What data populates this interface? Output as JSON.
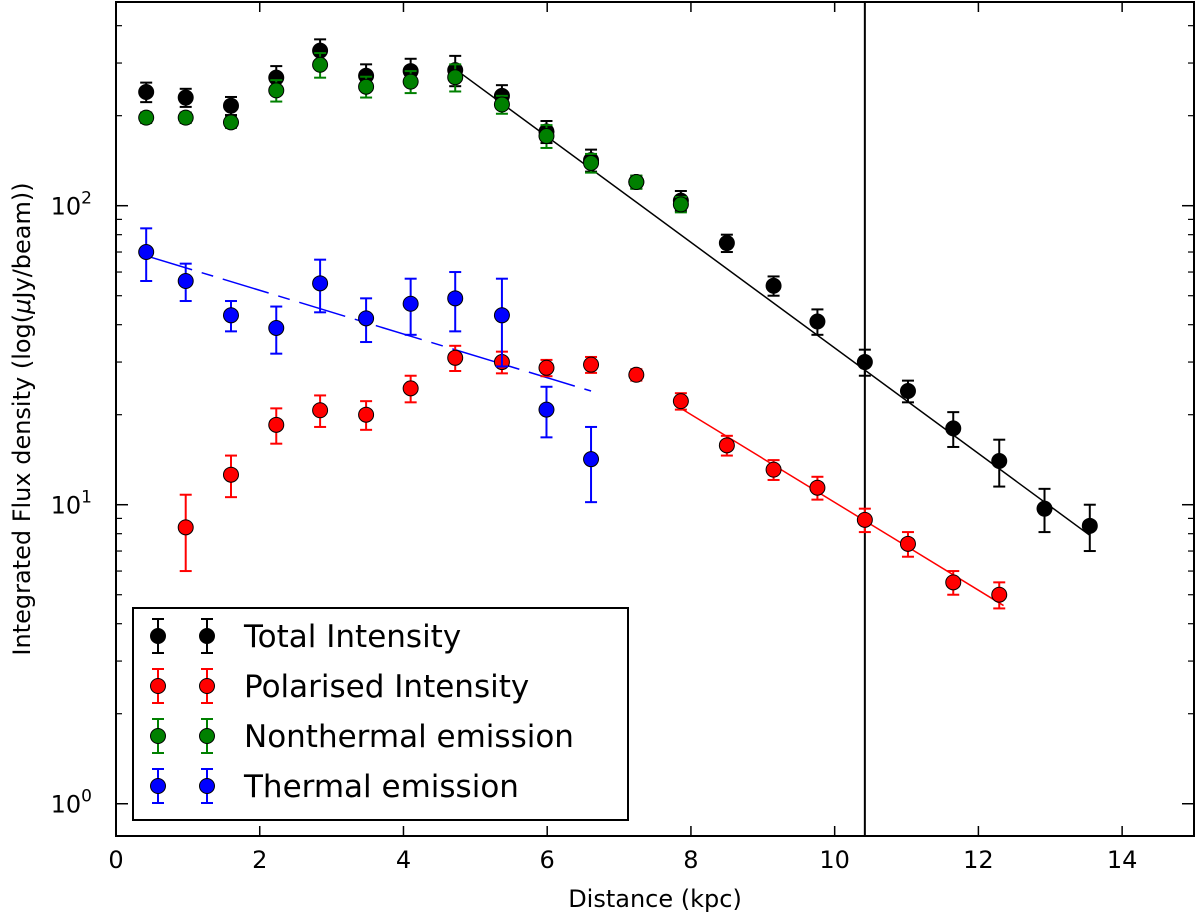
{
  "chart_data": {
    "type": "scatter",
    "xlabel": "Distance (kpc)",
    "ylabel_prefix": "Integrated Flux density (log(",
    "ylabel_mu": "μ",
    "ylabel_suffix": "Jy/beam))",
    "xlim": [
      0,
      15
    ],
    "ylim": [
      0.78,
      480
    ],
    "y_scale": "log",
    "x_ticks": [
      0,
      2,
      4,
      6,
      8,
      10,
      12,
      14
    ],
    "y_ticks": [
      {
        "value": 1,
        "base": "10",
        "exp": "0"
      },
      {
        "value": 10,
        "base": "10",
        "exp": "1"
      },
      {
        "value": 100,
        "base": "10",
        "exp": "2"
      }
    ],
    "vertical_line_x": 10.42,
    "legend_position": "lower-left",
    "series": [
      {
        "name": "Total Intensity",
        "color": "#000000",
        "x": [
          0.42,
          0.97,
          1.6,
          2.23,
          2.84,
          3.48,
          4.1,
          4.72,
          5.37,
          5.99,
          6.61,
          7.24,
          7.86,
          8.5,
          9.15,
          9.76,
          10.42,
          11.02,
          11.65,
          12.29,
          12.92,
          13.55
        ],
        "y": [
          240,
          230,
          216,
          268,
          330,
          272,
          282,
          284,
          233,
          177,
          142,
          120,
          104,
          75,
          54,
          41,
          30,
          24,
          18,
          14,
          9.7,
          8.5
        ],
        "err": [
          18,
          16,
          15,
          25,
          30,
          25,
          28,
          33,
          20,
          15,
          12,
          6,
          8,
          5,
          4,
          4,
          3,
          2,
          2.4,
          2.5,
          1.6,
          1.5
        ],
        "fit": {
          "x": [
            4.73,
            13.55
          ],
          "y": [
            285,
            7.9
          ],
          "dashed": false
        }
      },
      {
        "name": "Polarised Intensity",
        "color": "#ff0000",
        "x": [
          0.97,
          1.6,
          2.23,
          2.84,
          3.48,
          4.1,
          4.72,
          5.37,
          5.99,
          6.61,
          7.24,
          7.86,
          8.5,
          9.15,
          9.76,
          10.42,
          11.02,
          11.65,
          12.29
        ],
        "y": [
          8.4,
          12.6,
          18.5,
          20.7,
          20,
          24.5,
          31,
          30,
          28.7,
          29.4,
          27.2,
          22.2,
          15.8,
          13.1,
          11.4,
          8.9,
          7.4,
          5.5,
          5
        ],
        "err": [
          2.4,
          2,
          2.5,
          2.5,
          2.2,
          2.5,
          3,
          2.5,
          1.8,
          1.8,
          1.2,
          1.4,
          1.2,
          1.0,
          1.0,
          0.8,
          0.7,
          0.5,
          0.5
        ],
        "fit": {
          "x": [
            7.86,
            12.35
          ],
          "y": [
            21,
            4.6
          ],
          "dashed": false
        }
      },
      {
        "name": "Nonthermal emission",
        "color": "#008000",
        "x": [
          0.42,
          0.97,
          1.6,
          2.23,
          2.84,
          3.48,
          4.1,
          4.72,
          5.37,
          5.99,
          6.61,
          7.24,
          7.86
        ],
        "y": [
          197,
          197,
          190,
          243,
          296,
          250,
          260,
          269,
          218,
          171,
          139,
          120,
          101
        ],
        "err": [
          8,
          8,
          8,
          20,
          28,
          20,
          22,
          28,
          15,
          15,
          10,
          6,
          6
        ],
        "fit": null
      },
      {
        "name": "Thermal emission",
        "color": "#0000ff",
        "x": [
          0.42,
          0.97,
          1.6,
          2.23,
          2.84,
          3.48,
          4.1,
          4.72,
          5.37,
          5.99,
          6.61
        ],
        "y": [
          70,
          56,
          43,
          39,
          55,
          42,
          47,
          49,
          43,
          20.8,
          14.2
        ],
        "err": [
          14,
          8,
          5,
          7,
          11,
          7,
          10,
          11,
          14,
          4,
          4
        ],
        "fit": {
          "x": [
            0.42,
            6.61
          ],
          "y": [
            68,
            24
          ],
          "dashed": true
        }
      }
    ]
  }
}
